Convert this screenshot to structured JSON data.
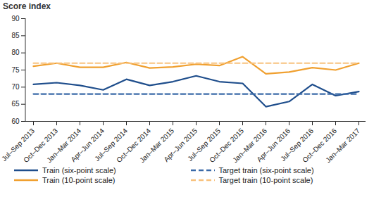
{
  "chart_data": {
    "type": "line",
    "y_label": "Score index",
    "categories": [
      "Jul–Sep 2013",
      "Oct–Dec 2013",
      "Jan–Mar 2014",
      "Apr–Jun 2014",
      "Jul–Sep 2014",
      "Oct–Dec 2014",
      "Jan–Mar 2015",
      "Apr–Jun 2015",
      "Jul–Sep 2015",
      "Oct–Dec 2015",
      "Jan–Mar 2016",
      "Apr–Jun 2016",
      "Jul–Sep 2016",
      "Oct–Dec 2016",
      "Jan–Mar 2017"
    ],
    "series": [
      {
        "name": "Train (six-point scale)",
        "color": "#1f4e8c",
        "line_style": "solid",
        "values": [
          70.8,
          71.3,
          70.5,
          69.2,
          72.3,
          70.5,
          71.6,
          73.3,
          71.6,
          71.1,
          64.3,
          65.8,
          70.8,
          67.5,
          68.7
        ]
      },
      {
        "name": "Target train (six-point scale)",
        "color": "#3a6aa8",
        "line_style": "dashed",
        "values": [
          68,
          68,
          68,
          68,
          68,
          68,
          68,
          68,
          68,
          68,
          68,
          68,
          68,
          68,
          68
        ]
      },
      {
        "name": "Train (10-point scale)",
        "color": "#f0a030",
        "line_style": "solid",
        "values": [
          76.1,
          77.0,
          75.8,
          75.8,
          77.2,
          75.6,
          75.9,
          76.7,
          76.3,
          78.9,
          73.9,
          74.4,
          75.7,
          75.0,
          77.0
        ]
      },
      {
        "name": "Target train (10-point scale)",
        "color": "#f8c27e",
        "line_style": "dashed",
        "values": [
          77,
          77,
          77,
          77,
          77,
          77,
          77,
          77,
          77,
          77,
          77,
          77,
          77,
          77,
          77
        ]
      }
    ],
    "ylim": [
      60,
      90
    ],
    "yticks": [
      60,
      65,
      70,
      75,
      80,
      85,
      90
    ],
    "grid": false,
    "legend": "bottom"
  }
}
